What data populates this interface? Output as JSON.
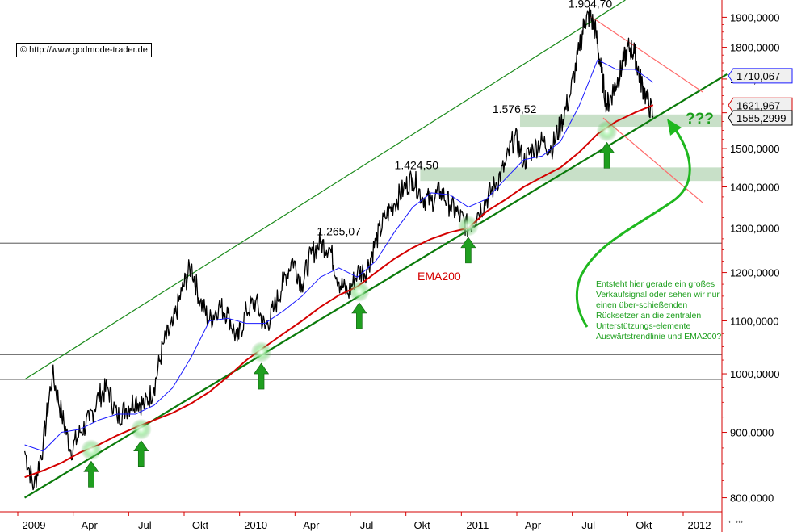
{
  "source": {
    "label": "©  http://www.godmode-trader.de"
  },
  "note": {
    "text": "Entsteht hier gerade ein großes Verkaufsignal oder sehen wir nur einen über-schießenden Rücksetzer an die zentralen Unterstützungs-elemente Auswärtstrendlinie und EMA200?"
  },
  "question_marks": "???",
  "ema_label": "EMA200",
  "nav_icons": "←→↔",
  "colors": {
    "price": "#000000",
    "ema200": "#d40000",
    "ema_short": "#1a1aff",
    "trend": "#0a7a0a",
    "channel_top": "#1a8a1a",
    "down_trend": "#ff6a6a",
    "zone": "#b5d5b5",
    "arrow": "#1f9f1f",
    "note": "#1b9e1b"
  },
  "chart_data": {
    "type": "line",
    "xlabel": "",
    "ylabel": "",
    "ylim": [
      780,
      1960
    ],
    "log_scale": true,
    "grid": false,
    "x_ticks": [
      {
        "label": "2009",
        "t": 0.5
      },
      {
        "label": "Apr",
        "t": 3.5
      },
      {
        "label": "Jul",
        "t": 6.5
      },
      {
        "label": "Okt",
        "t": 9.5
      },
      {
        "label": "2010",
        "t": 12.5
      },
      {
        "label": "Apr",
        "t": 15.5
      },
      {
        "label": "Jul",
        "t": 18.5
      },
      {
        "label": "Okt",
        "t": 21.5
      },
      {
        "label": "2011",
        "t": 24.5
      },
      {
        "label": "Apr",
        "t": 27.5
      },
      {
        "label": "Jul",
        "t": 30.5
      },
      {
        "label": "Okt",
        "t": 33.5
      },
      {
        "label": "2012",
        "t": 36.5
      }
    ],
    "y_ticks": [
      {
        "label": "1900,0000",
        "v": 1900
      },
      {
        "label": "1800,0000",
        "v": 1800
      },
      {
        "label": "1700,0000",
        "v": 1700
      },
      {
        "label": "1600,0000",
        "v": 1600
      },
      {
        "label": "1500,0000",
        "v": 1500
      },
      {
        "label": "1400,0000",
        "v": 1400
      },
      {
        "label": "1300,0000",
        "v": 1300
      },
      {
        "label": "1200,0000",
        "v": 1200
      },
      {
        "label": "1100,0000",
        "v": 1100
      },
      {
        "label": "1000,0000",
        "v": 1000
      },
      {
        "label": "900,0000",
        "v": 900
      },
      {
        "label": "800,0000",
        "v": 800
      }
    ],
    "price_markers": [
      {
        "label": "1710,067",
        "v": 1710.067,
        "border": "#1a1aff"
      },
      {
        "label": "1621,967",
        "v": 1621.967,
        "border": "#d40000"
      },
      {
        "label": "1585,2999",
        "v": 1585.2999,
        "border": "#000000"
      }
    ],
    "peak_labels": [
      {
        "label": "1.904,70",
        "t": 30.6,
        "v": 1904.7
      },
      {
        "label": "1.576,52",
        "t": 26.5,
        "v": 1576.52
      },
      {
        "label": "1.424,50",
        "t": 21.2,
        "v": 1424.5
      },
      {
        "label": "1.265,07",
        "t": 17.0,
        "v": 1265.07
      }
    ],
    "horizontal_levels": [
      {
        "v": 1265.07,
        "color": "#777777"
      },
      {
        "v": 1035,
        "color": "#777777"
      },
      {
        "v": 990,
        "color": "#555555"
      }
    ],
    "zones": [
      {
        "from": 1560,
        "to": 1595,
        "t_start": 26.8
      },
      {
        "from": 1415,
        "to": 1450,
        "t_start": 21.4
      }
    ],
    "support_arrows": [
      {
        "t": 3.6,
        "v": 872
      },
      {
        "t": 6.3,
        "v": 905
      },
      {
        "t": 12.8,
        "v": 1040
      },
      {
        "t": 18.1,
        "v": 1160
      },
      {
        "t": 24.0,
        "v": 1305
      },
      {
        "t": 31.5,
        "v": 1548
      }
    ],
    "series": [
      {
        "name": "",
        "style": "price",
        "x": [
          0.0,
          0.5,
          1.0,
          1.5,
          2.0,
          2.5,
          3.0,
          3.5,
          4.0,
          4.5,
          5.0,
          5.5,
          6.0,
          6.5,
          7.0,
          7.5,
          8.0,
          8.5,
          9.0,
          9.5,
          10.0,
          10.5,
          11.0,
          11.5,
          12.0,
          12.5,
          13.0,
          13.5,
          14.0,
          14.5,
          15.0,
          15.5,
          16.0,
          16.5,
          17.0,
          17.5,
          18.0,
          18.5,
          19.0,
          19.5,
          20.0,
          20.5,
          21.0,
          21.5,
          22.0,
          22.5,
          23.0,
          23.5,
          24.0,
          24.5,
          25.0,
          25.5,
          26.0,
          26.5,
          27.0,
          27.5,
          28.0,
          28.5,
          29.0,
          29.5,
          30.0,
          30.3,
          30.6,
          30.9,
          31.2,
          31.5,
          31.8,
          32.1,
          32.4,
          32.7,
          33.0,
          33.3,
          33.6,
          34.0
        ],
        "values": [
          870,
          815,
          880,
          1000,
          930,
          870,
          900,
          920,
          960,
          975,
          925,
          940,
          955,
          945,
          975,
          1055,
          1090,
          1160,
          1215,
          1140,
          1100,
          1130,
          1115,
          1060,
          1120,
          1140,
          1085,
          1125,
          1180,
          1230,
          1175,
          1240,
          1265,
          1255,
          1180,
          1155,
          1200,
          1205,
          1270,
          1325,
          1360,
          1395,
          1424,
          1375,
          1365,
          1390,
          1355,
          1330,
          1300,
          1335,
          1370,
          1410,
          1455,
          1535,
          1465,
          1500,
          1520,
          1500,
          1565,
          1650,
          1790,
          1890,
          1904,
          1850,
          1720,
          1620,
          1660,
          1700,
          1755,
          1800,
          1780,
          1700,
          1650,
          1590
        ]
      },
      {
        "name": "",
        "style": "ema_short",
        "x": [
          0,
          1,
          2,
          3,
          4,
          5,
          6,
          7,
          8,
          9,
          10,
          11,
          12,
          13,
          14,
          15,
          16,
          17,
          18,
          19,
          20,
          21,
          22,
          23,
          24,
          25,
          26,
          27,
          28,
          29,
          30,
          31,
          32,
          33,
          34
        ],
        "values": [
          880,
          870,
          900,
          905,
          920,
          930,
          930,
          945,
          975,
          1030,
          1100,
          1105,
          1095,
          1095,
          1120,
          1150,
          1190,
          1210,
          1190,
          1225,
          1290,
          1350,
          1385,
          1380,
          1350,
          1370,
          1420,
          1470,
          1480,
          1520,
          1620,
          1760,
          1730,
          1730,
          1690
        ]
      },
      {
        "name": "EMA200",
        "style": "ema200",
        "x": [
          0,
          1,
          2,
          3,
          4,
          5,
          6,
          7,
          8,
          9,
          10,
          11,
          12,
          13,
          14,
          15,
          16,
          17,
          18,
          19,
          20,
          21,
          22,
          23,
          24,
          25,
          26,
          27,
          28,
          29,
          30,
          31,
          32,
          33,
          34
        ],
        "values": [
          830,
          840,
          852,
          868,
          880,
          895,
          908,
          920,
          932,
          948,
          968,
          995,
          1025,
          1050,
          1075,
          1100,
          1128,
          1152,
          1170,
          1200,
          1230,
          1255,
          1275,
          1290,
          1300,
          1340,
          1368,
          1400,
          1425,
          1450,
          1490,
          1540,
          1575,
          1600,
          1622
        ]
      }
    ],
    "lines": [
      {
        "style": "trend",
        "from": {
          "t": 0.0,
          "v": 800
        },
        "to": {
          "t": 38.0,
          "v": 1715
        }
      },
      {
        "style": "channel_top",
        "from": {
          "t": 0.0,
          "v": 990
        },
        "to": {
          "t": 32.5,
          "v": 1960
        }
      },
      {
        "style": "down_trend",
        "from": {
          "t": 30.6,
          "v": 1904
        },
        "to": {
          "t": 36.7,
          "v": 1660
        }
      },
      {
        "style": "down_trend",
        "from": {
          "t": 31.3,
          "v": 1585
        },
        "to": {
          "t": 36.7,
          "v": 1360
        }
      }
    ]
  }
}
